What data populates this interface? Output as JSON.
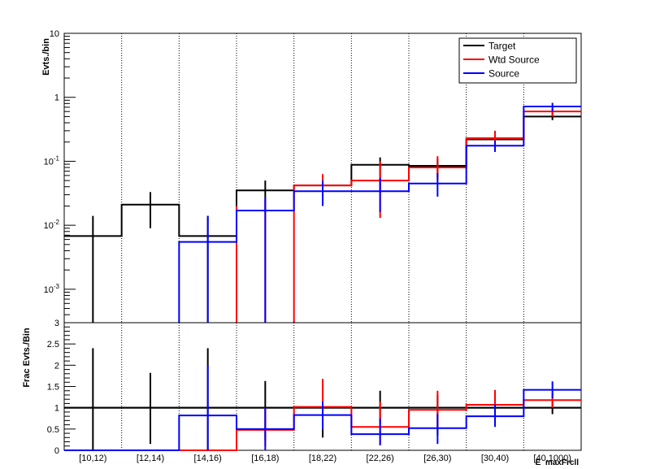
{
  "chart_data": [
    {
      "type": "step",
      "ylabel": "Evts./bin",
      "yscale": "log",
      "ylim": [
        0.0003,
        10
      ],
      "yticks": [
        {
          "v": 10,
          "base": "10",
          "exp": ""
        },
        {
          "v": 1,
          "base": "1",
          "exp": ""
        },
        {
          "v": 0.1,
          "base": "10",
          "exp": "-1"
        },
        {
          "v": 0.01,
          "base": "10",
          "exp": "-2"
        },
        {
          "v": 0.001,
          "base": "10",
          "exp": "-3"
        }
      ],
      "categories": [
        "[10,12)",
        "[12,14)",
        "[14,16)",
        "[16,18)",
        "[18,22)",
        "[22,26)",
        "[26,30)",
        "[30,40)",
        "[40,1000)"
      ],
      "legend": {
        "position": "top-right"
      },
      "series": [
        {
          "name": "Target",
          "color": "#000000",
          "values": [
            0.0068,
            0.021,
            0.0068,
            0.035,
            0.042,
            0.088,
            0.085,
            0.22,
            0.5
          ],
          "err_low": [
            0.0003,
            0.009,
            0.0003,
            0.016,
            0.03,
            0.032,
            0.056,
            0.16,
            0.44
          ],
          "err_high": [
            0.014,
            0.033,
            0.014,
            0.05,
            0.055,
            0.115,
            0.11,
            0.28,
            0.58
          ]
        },
        {
          "name": "Wtd Source",
          "color": "#ff0000",
          "values": [
            null,
            null,
            null,
            null,
            0.042,
            0.05,
            0.08,
            0.23,
            0.6
          ],
          "err_low": [
            null,
            null,
            null,
            null,
            0.03,
            0.013,
            0.05,
            0.18,
            0.5
          ],
          "err_high": [
            null,
            null,
            null,
            null,
            0.063,
            0.1,
            0.12,
            0.3,
            0.68
          ],
          "drop_to_floor": [
            3
          ]
        },
        {
          "name": "Source",
          "color": "#0000ff",
          "values": [
            null,
            null,
            0.0055,
            0.017,
            0.034,
            0.034,
            0.045,
            0.175,
            0.72
          ],
          "err_low": [
            null,
            null,
            0.0003,
            0.0003,
            0.02,
            0.016,
            0.028,
            0.14,
            0.6
          ],
          "err_high": [
            null,
            null,
            0.014,
            0.027,
            0.05,
            0.055,
            0.065,
            0.21,
            0.82
          ]
        }
      ]
    },
    {
      "type": "step",
      "ylabel": "Frac Evts./Bin",
      "ylim": [
        0,
        3
      ],
      "yticks": [
        "0",
        "0.5",
        "1",
        "1.5",
        "2",
        "2.5",
        "3"
      ],
      "xlabel": "E_maxFrcll",
      "reference_line": 1,
      "categories": [
        "[10,12)",
        "[12,14)",
        "[14,16)",
        "[16,18)",
        "[18,22)",
        "[22,26)",
        "[26,30)",
        "[30,40)",
        "[40,1000)"
      ],
      "series": [
        {
          "name": "Target",
          "color": "#000000",
          "values": [
            1,
            1,
            1,
            1,
            1,
            1,
            1,
            1,
            1
          ],
          "err_low": [
            0,
            0.15,
            0,
            0.25,
            0.3,
            0.62,
            0.35,
            0.72,
            0.85
          ],
          "err_high": [
            2.4,
            1.82,
            2.4,
            1.63,
            1.3,
            1.4,
            1.3,
            1.28,
            1.15
          ]
        },
        {
          "name": "Wtd Source",
          "color": "#ff0000",
          "values": [
            0,
            0,
            0,
            0.48,
            1.02,
            0.55,
            0.95,
            1.07,
            1.18
          ],
          "err_low": [
            null,
            null,
            null,
            0.1,
            0.55,
            0.12,
            0.5,
            0.75,
            1.0
          ],
          "err_high": [
            null,
            null,
            null,
            1.0,
            1.68,
            1.15,
            1.4,
            1.42,
            1.35
          ]
        },
        {
          "name": "Source",
          "color": "#0000ff",
          "values": [
            0,
            0,
            0.82,
            0.5,
            0.83,
            0.38,
            0.52,
            0.8,
            1.42
          ],
          "err_low": [
            null,
            null,
            0,
            0,
            0.5,
            0.12,
            0.15,
            0.55,
            1.22
          ],
          "err_high": [
            null,
            null,
            2.0,
            1.0,
            1.15,
            0.75,
            0.85,
            1.08,
            1.62
          ]
        }
      ]
    }
  ]
}
